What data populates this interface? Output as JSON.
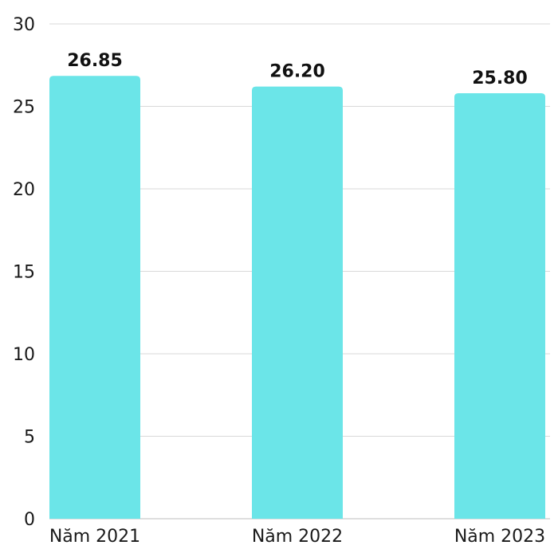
{
  "chart_data": {
    "type": "bar",
    "categories": [
      "Năm 2021",
      "Năm 2022",
      "Năm 2023"
    ],
    "values": [
      26.85,
      26.2,
      25.8
    ],
    "value_labels": [
      "26.85",
      "26.20",
      "25.80"
    ],
    "ylim": [
      0,
      30
    ],
    "yticks": [
      0,
      5,
      10,
      15,
      20,
      25,
      30
    ],
    "grid": true,
    "bar_color": "#6be5e8",
    "title": "",
    "xlabel": "",
    "ylabel": ""
  }
}
